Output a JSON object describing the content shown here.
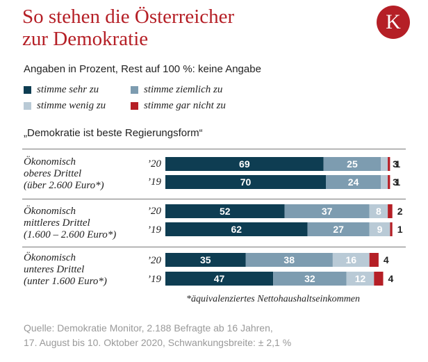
{
  "header": {
    "title_line1": "So stehen die Österreicher",
    "title_line2": "zur Demokratie",
    "logo_letter": "K"
  },
  "subtitle": "Angaben in Prozent, Rest auf 100 %: keine Angabe",
  "legend": [
    {
      "label": "stimme sehr zu",
      "color": "#0e3d52"
    },
    {
      "label": "stimme ziemlich zu",
      "color": "#7d9cb0"
    },
    {
      "label": "stimme wenig zu",
      "color": "#b9cad6"
    },
    {
      "label": "stimme gar nicht zu",
      "color": "#b51f26"
    }
  ],
  "question": "„Demokratie ist beste Regierungsform“",
  "groups": [
    {
      "lines": [
        "Ökonomisch",
        "oberes Drittel",
        "(über 2.600 Euro*)"
      ]
    },
    {
      "lines": [
        "Ökonomisch",
        "mittleres Drittel",
        "(1.600 – 2.600 Euro*)"
      ]
    },
    {
      "lines": [
        "Ökonomisch",
        "unteres Drittel",
        "(unter 1.600 Euro*)"
      ]
    }
  ],
  "chart_data": {
    "type": "bar",
    "orientation": "horizontal",
    "stacked": true,
    "series": [
      {
        "name": "stimme sehr zu",
        "color": "#0e3d52"
      },
      {
        "name": "stimme ziemlich zu",
        "color": "#7d9cb0"
      },
      {
        "name": "stimme wenig zu",
        "color": "#b9cad6"
      },
      {
        "name": "stimme gar nicht zu",
        "color": "#b51f26"
      }
    ],
    "rows": [
      {
        "group": 0,
        "year": "’20",
        "values": [
          69,
          25,
          3,
          1
        ]
      },
      {
        "group": 0,
        "year": "’19",
        "values": [
          70,
          24,
          3,
          1
        ]
      },
      {
        "group": 1,
        "year": "’20",
        "values": [
          52,
          37,
          8,
          2
        ]
      },
      {
        "group": 1,
        "year": "’19",
        "values": [
          62,
          27,
          9,
          1
        ]
      },
      {
        "group": 2,
        "year": "’20",
        "values": [
          35,
          38,
          16,
          4
        ]
      },
      {
        "group": 2,
        "year": "’19",
        "values": [
          47,
          32,
          12,
          4
        ]
      }
    ],
    "xlim": [
      0,
      100
    ]
  },
  "footnote": "*äquivalenziertes Nettohaushaltseinkommen",
  "source_line1": "Quelle: Demokratie Monitor, 2.188 Befragte ab 16 Jahren,",
  "source_line2": "17. August bis 10. Oktober 2020, Schwankungsbreite: ± 2,1 %"
}
